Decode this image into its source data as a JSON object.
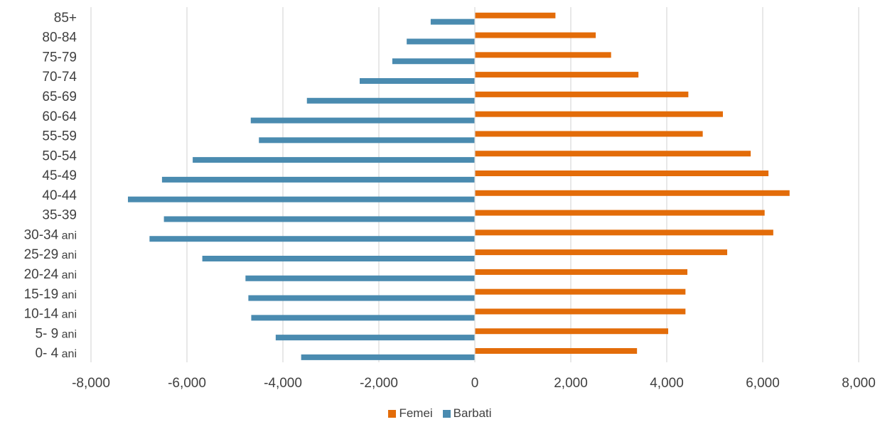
{
  "chart_data": {
    "type": "bar",
    "orientation": "horizontal",
    "categories": [
      "0- 4 ani",
      "5- 9 ani",
      "10-14 ani",
      "15-19 ani",
      "20-24 ani",
      "25-29 ani",
      "30-34 ani",
      "35-39",
      "40-44",
      "45-49",
      "50-54",
      "55-59",
      "60-64",
      "65-69",
      "70-74",
      "75-79",
      "80-84",
      "85+"
    ],
    "series": [
      {
        "name": "Femei",
        "color": "#E36C09",
        "values": [
          3380,
          4030,
          4390,
          4390,
          4430,
          5260,
          6220,
          6040,
          6560,
          6120,
          5750,
          4750,
          5170,
          4450,
          3410,
          2840,
          2520,
          1680
        ]
      },
      {
        "name": "Barbati",
        "color": "#4A8BB0",
        "values": [
          -3620,
          -4150,
          -4660,
          -4720,
          -4780,
          -5680,
          -6780,
          -6480,
          -7230,
          -6520,
          -5880,
          -4500,
          -4670,
          -3500,
          -2400,
          -1720,
          -1420,
          -920
        ]
      }
    ],
    "x_ticks": [
      -8000,
      -6000,
      -4000,
      -2000,
      0,
      2000,
      4000,
      6000,
      8000
    ],
    "x_tick_labels": [
      "-8,000",
      "-6,000",
      "-4,000",
      "-2,000",
      "0",
      "2,000",
      "4,000",
      "6,000",
      "8,000"
    ],
    "xlim": [
      -8000,
      8000
    ],
    "grid": "vertical",
    "legend_position": "bottom",
    "title": "",
    "xlabel": "",
    "ylabel": ""
  },
  "legend": {
    "femei_label": "Femei",
    "barbati_label": "Barbati"
  }
}
